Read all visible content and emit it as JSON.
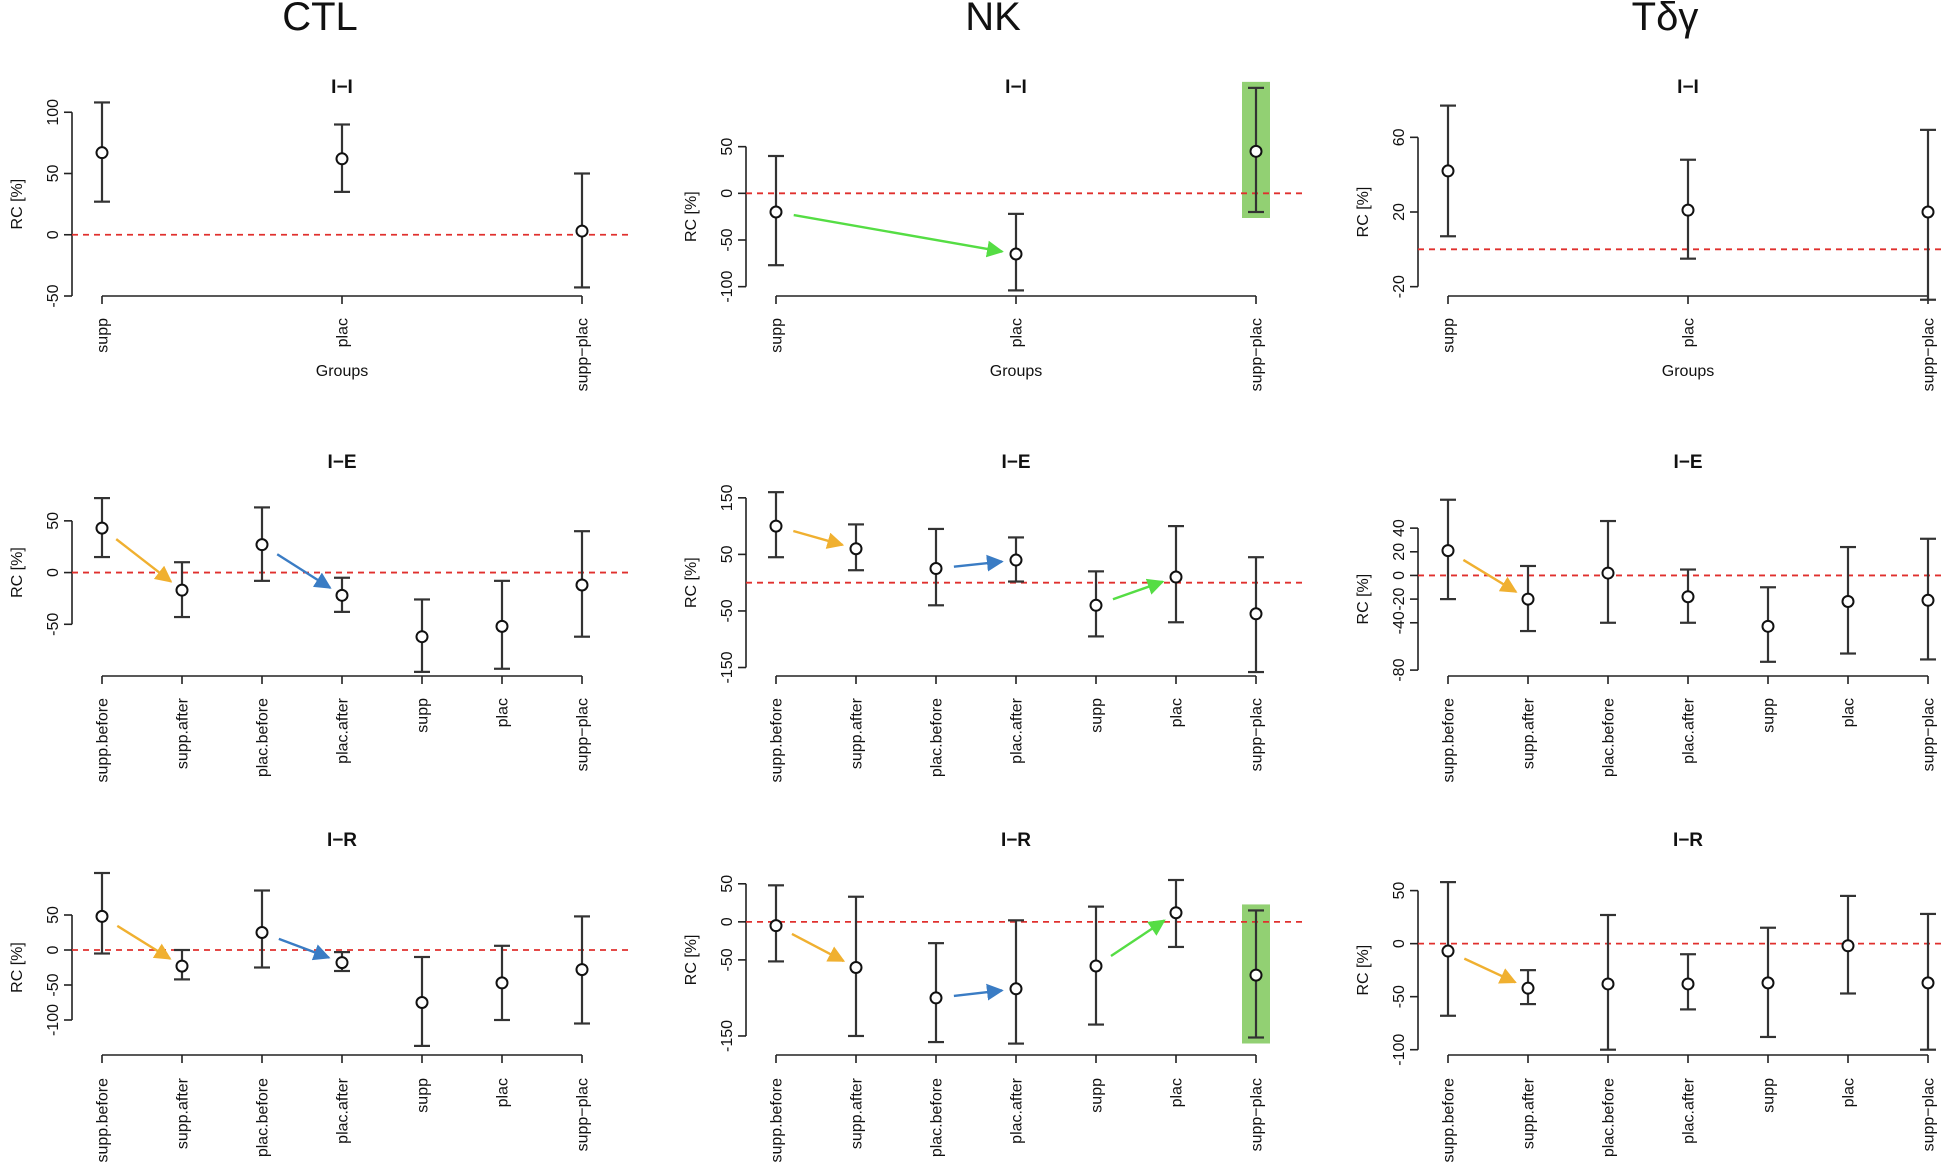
{
  "columns": [
    "CTL",
    "NK",
    "Tδγ"
  ],
  "colors": {
    "zero_line": "#e0302e",
    "arrow_orange": "#f0b030",
    "arrow_blue": "#3a7cc4",
    "arrow_green": "#55dd44",
    "highlight": "#7fc85a"
  },
  "chart_data": [
    {
      "type": "scatter",
      "column": "CTL",
      "title": "I−I",
      "ylabel": "RC [%]",
      "xlabel": "Groups",
      "categories": [
        "supp",
        "plac",
        "supp−plac"
      ],
      "ylim": [
        -50,
        110
      ],
      "yticks": [
        -50,
        0,
        50,
        100
      ],
      "points": [
        {
          "y": 67,
          "lo": 27,
          "hi": 108
        },
        {
          "y": 62,
          "lo": 35,
          "hi": 90
        },
        {
          "y": 3,
          "lo": -43,
          "hi": 50
        }
      ],
      "arrows": [],
      "highlight": null
    },
    {
      "type": "scatter",
      "column": "NK",
      "title": "I−I",
      "ylabel": "RC [%]",
      "xlabel": "Groups",
      "categories": [
        "supp",
        "plac",
        "supp−plac"
      ],
      "ylim": [
        -110,
        100
      ],
      "yticks": [
        -100,
        -50,
        0,
        50
      ],
      "points": [
        {
          "y": -20,
          "lo": -77,
          "hi": 40
        },
        {
          "y": -65,
          "lo": -104,
          "hi": -22
        },
        {
          "y": 45,
          "lo": -20,
          "hi": 113
        }
      ],
      "arrows": [
        {
          "from": 0,
          "to": 1,
          "color": "green"
        }
      ],
      "highlight": 2
    },
    {
      "type": "scatter",
      "column": "Tδγ",
      "title": "I−I",
      "ylabel": "RC [%]",
      "xlabel": "Groups",
      "categories": [
        "supp",
        "plac",
        "supp−plac"
      ],
      "ylim": [
        -25,
        80
      ],
      "yticks": [
        -20,
        20,
        60
      ],
      "points": [
        {
          "y": 42,
          "lo": 7,
          "hi": 77
        },
        {
          "y": 21,
          "lo": -5,
          "hi": 48
        },
        {
          "y": 20,
          "lo": -27,
          "hi": 64
        }
      ],
      "arrows": [],
      "highlight": null
    },
    {
      "type": "scatter",
      "column": "CTL",
      "title": "I−E",
      "ylabel": "RC [%]",
      "categories": [
        "supp.before",
        "supp.after",
        "plac.before",
        "plac.after",
        "supp",
        "plac",
        "supp−plac"
      ],
      "ylim": [
        -100,
        75
      ],
      "yticks": [
        -50,
        0,
        50
      ],
      "points": [
        {
          "y": 43,
          "lo": 15,
          "hi": 72
        },
        {
          "y": -17,
          "lo": -43,
          "hi": 10
        },
        {
          "y": 27,
          "lo": -8,
          "hi": 63
        },
        {
          "y": -22,
          "lo": -38,
          "hi": -5
        },
        {
          "y": -62,
          "lo": -96,
          "hi": -26
        },
        {
          "y": -52,
          "lo": -93,
          "hi": -8
        },
        {
          "y": -12,
          "lo": -62,
          "hi": 40
        }
      ],
      "arrows": [
        {
          "from": 0,
          "to": 1,
          "color": "orange"
        },
        {
          "from": 2,
          "to": 3,
          "color": "blue"
        }
      ],
      "highlight": null
    },
    {
      "type": "scatter",
      "column": "NK",
      "title": "I−E",
      "ylabel": "RC [%]",
      "categories": [
        "supp.before",
        "supp.after",
        "plac.before",
        "plac.after",
        "supp",
        "plac",
        "supp−plac"
      ],
      "ylim": [
        -165,
        155
      ],
      "yticks": [
        -150,
        -50,
        50,
        150
      ],
      "points": [
        {
          "y": 100,
          "lo": 45,
          "hi": 160
        },
        {
          "y": 60,
          "lo": 22,
          "hi": 103
        },
        {
          "y": 25,
          "lo": -40,
          "hi": 95
        },
        {
          "y": 40,
          "lo": 2,
          "hi": 80
        },
        {
          "y": -40,
          "lo": -95,
          "hi": 20
        },
        {
          "y": 10,
          "lo": -70,
          "hi": 100
        },
        {
          "y": -55,
          "lo": -158,
          "hi": 45
        }
      ],
      "arrows": [
        {
          "from": 0,
          "to": 1,
          "color": "orange"
        },
        {
          "from": 2,
          "to": 3,
          "color": "blue"
        },
        {
          "from": 4,
          "to": 5,
          "color": "green"
        }
      ],
      "highlight": null
    },
    {
      "type": "scatter",
      "column": "Tδγ",
      "title": "I−E",
      "ylabel": "RC [%]",
      "categories": [
        "supp.before",
        "supp.after",
        "plac.before",
        "plac.after",
        "supp",
        "plac",
        "supp−plac"
      ],
      "ylim": [
        -85,
        68
      ],
      "yticks": [
        -80,
        -40,
        -20,
        0,
        20,
        40
      ],
      "points": [
        {
          "y": 21,
          "lo": -20,
          "hi": 64
        },
        {
          "y": -20,
          "lo": -47,
          "hi": 8
        },
        {
          "y": 2,
          "lo": -40,
          "hi": 46
        },
        {
          "y": -18,
          "lo": -40,
          "hi": 5
        },
        {
          "y": -43,
          "lo": -73,
          "hi": -10
        },
        {
          "y": -22,
          "lo": -66,
          "hi": 24
        },
        {
          "y": -21,
          "lo": -71,
          "hi": 31
        }
      ],
      "arrows": [
        {
          "from": 0,
          "to": 1,
          "color": "orange"
        }
      ],
      "highlight": null
    },
    {
      "type": "scatter",
      "column": "CTL",
      "title": "I−R",
      "ylabel": "RC [%]",
      "categories": [
        "supp.before",
        "supp.after",
        "plac.before",
        "plac.after",
        "supp",
        "plac",
        "supp−plac"
      ],
      "ylim": [
        -150,
        100
      ],
      "yticks": [
        -100,
        -50,
        0,
        50
      ],
      "points": [
        {
          "y": 48,
          "lo": -5,
          "hi": 110
        },
        {
          "y": -23,
          "lo": -42,
          "hi": 0
        },
        {
          "y": 25,
          "lo": -25,
          "hi": 85
        },
        {
          "y": -18,
          "lo": -30,
          "hi": -3
        },
        {
          "y": -75,
          "lo": -137,
          "hi": -10
        },
        {
          "y": -47,
          "lo": -100,
          "hi": 6
        },
        {
          "y": -28,
          "lo": -105,
          "hi": 48
        }
      ],
      "arrows": [
        {
          "from": 0,
          "to": 1,
          "color": "orange"
        },
        {
          "from": 2,
          "to": 3,
          "color": "blue"
        }
      ],
      "highlight": null
    },
    {
      "type": "scatter",
      "column": "NK",
      "title": "I−R",
      "ylabel": "RC [%]",
      "categories": [
        "supp.before",
        "supp.after",
        "plac.before",
        "plac.after",
        "supp",
        "plac",
        "supp−plac"
      ],
      "ylim": [
        -175,
        55
      ],
      "yticks": [
        -150,
        -50,
        0,
        50
      ],
      "points": [
        {
          "y": -5,
          "lo": -52,
          "hi": 48
        },
        {
          "y": -60,
          "lo": -150,
          "hi": 33
        },
        {
          "y": -100,
          "lo": -158,
          "hi": -28
        },
        {
          "y": -88,
          "lo": -160,
          "hi": 2
        },
        {
          "y": -58,
          "lo": -135,
          "hi": 20
        },
        {
          "y": 12,
          "lo": -33,
          "hi": 55
        },
        {
          "y": -70,
          "lo": -152,
          "hi": 15
        }
      ],
      "arrows": [
        {
          "from": 0,
          "to": 1,
          "color": "orange"
        },
        {
          "from": 2,
          "to": 3,
          "color": "blue"
        },
        {
          "from": 4,
          "to": 5,
          "color": "green"
        }
      ],
      "highlight": 6
    },
    {
      "type": "scatter",
      "column": "Tδγ",
      "title": "I−R",
      "ylabel": "RC [%]",
      "categories": [
        "supp.before",
        "supp.after",
        "plac.before",
        "plac.after",
        "supp",
        "plac",
        "supp−plac"
      ],
      "ylim": [
        -105,
        60
      ],
      "yticks": [
        -100,
        -50,
        0,
        50
      ],
      "points": [
        {
          "y": -7,
          "lo": -68,
          "hi": 58
        },
        {
          "y": -42,
          "lo": -57,
          "hi": -25
        },
        {
          "y": -38,
          "lo": -100,
          "hi": 27
        },
        {
          "y": -38,
          "lo": -62,
          "hi": -10
        },
        {
          "y": -37,
          "lo": -88,
          "hi": 15
        },
        {
          "y": -2,
          "lo": -47,
          "hi": 45
        },
        {
          "y": -37,
          "lo": -100,
          "hi": 28
        }
      ],
      "arrows": [
        {
          "from": 0,
          "to": 1,
          "color": "orange"
        }
      ],
      "highlight": null
    }
  ]
}
